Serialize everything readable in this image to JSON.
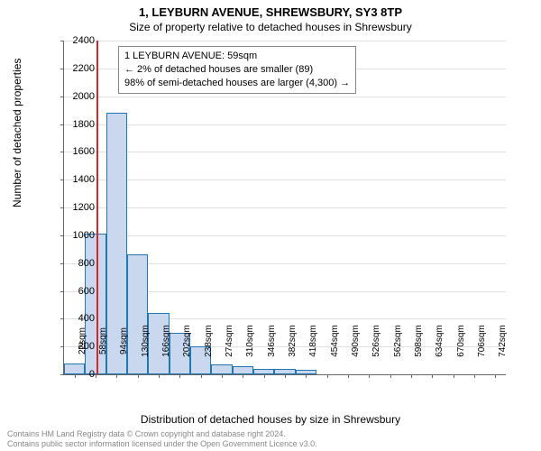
{
  "titles": {
    "main": "1, LEYBURN AVENUE, SHREWSBURY, SY3 8TP",
    "sub": "Size of property relative to detached houses in Shrewsbury"
  },
  "ylabel": "Number of detached properties",
  "xlabel": "Distribution of detached houses by size in Shrewsbury",
  "marker": {
    "x_sqm": 59,
    "color": "#d62728"
  },
  "annotation": {
    "line1": "1 LEYBURN AVENUE: 59sqm",
    "line2": "← 2% of detached houses are smaller (89)",
    "line3": "98% of semi-detached houses are larger (4,300) →"
  },
  "chart": {
    "type": "histogram",
    "x_start": 4,
    "x_end": 760,
    "bin_width_sqm": 36,
    "ylim": [
      0,
      2400
    ],
    "ytick_step": 200,
    "bar_fill": "#c9d8ef",
    "bar_stroke": "#1f77b4",
    "grid_color": "rgba(128,128,128,0.25)",
    "bars": [
      {
        "x_sqm": 22,
        "value": 80
      },
      {
        "x_sqm": 58,
        "value": 1010
      },
      {
        "x_sqm": 94,
        "value": 1880
      },
      {
        "x_sqm": 130,
        "value": 860
      },
      {
        "x_sqm": 166,
        "value": 440
      },
      {
        "x_sqm": 202,
        "value": 300
      },
      {
        "x_sqm": 238,
        "value": 200
      },
      {
        "x_sqm": 274,
        "value": 70
      },
      {
        "x_sqm": 310,
        "value": 60
      },
      {
        "x_sqm": 346,
        "value": 40
      },
      {
        "x_sqm": 382,
        "value": 40
      },
      {
        "x_sqm": 418,
        "value": 30
      },
      {
        "x_sqm": 454,
        "value": 0
      },
      {
        "x_sqm": 490,
        "value": 0
      },
      {
        "x_sqm": 526,
        "value": 0
      },
      {
        "x_sqm": 562,
        "value": 0
      },
      {
        "x_sqm": 598,
        "value": 0
      },
      {
        "x_sqm": 634,
        "value": 0
      },
      {
        "x_sqm": 670,
        "value": 0
      },
      {
        "x_sqm": 706,
        "value": 0
      },
      {
        "x_sqm": 742,
        "value": 0
      }
    ],
    "xticks": [
      22,
      58,
      94,
      130,
      166,
      202,
      238,
      274,
      310,
      346,
      382,
      418,
      454,
      490,
      526,
      562,
      598,
      634,
      670,
      706,
      742
    ]
  },
  "footer": {
    "line1": "Contains HM Land Registry data © Crown copyright and database right 2024.",
    "line2": "Contains public sector information licensed under the Open Government Licence v3.0."
  }
}
